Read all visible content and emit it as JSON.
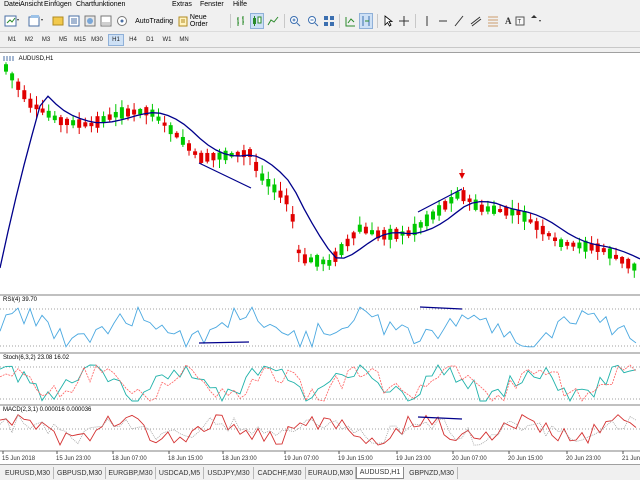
{
  "menu": [
    "Datei",
    "Ansicht",
    "Einfügen",
    "Chartfunktionen",
    "Extras",
    "Fenster",
    "Hilfe"
  ],
  "toolbar": {
    "autotrading_label": "AutoTrading",
    "new_order_label": "Neue Order"
  },
  "timeframes": [
    "M1",
    "M2",
    "M3",
    "M5",
    "M15",
    "M30",
    "H1",
    "H4",
    "D1",
    "W1",
    "MN"
  ],
  "active_timeframe": "H1",
  "main_chart": {
    "label": "AUDUSD,H1",
    "ma_color": "#00008b",
    "bull_color": "#00c800",
    "bear_color": "#e00000",
    "arrow_color": "#e00000"
  },
  "rsi_label": "RSI(4) 39.70",
  "stoch_label": "Stoch(6,3,2) 23.08 16.02",
  "macd_label": "MACD(2,3,1) 0.000016 0.000036",
  "time_labels": [
    "15 Jun 2018",
    "15 Jun 23:00",
    "18 Jun 07:00",
    "18 Jun 15:00",
    "18 Jun 23:00",
    "19 Jun 07:00",
    "19 Jun 15:00",
    "19 Jun 23:00",
    "20 Jun 07:00",
    "20 Jun 15:00",
    "20 Jun 23:00",
    "21 Jun"
  ],
  "symbol_tabs": [
    "EURUSD,M30",
    "GBPUSD,M30",
    "EURGBP,M30",
    "USDCAD,M5",
    "USDJPY,M30",
    "CADCHF,M30",
    "EURAUD,M30",
    "AUDUSD,H1",
    "GBPNZD,M30"
  ],
  "active_symbol": "AUDUSD,H1"
}
